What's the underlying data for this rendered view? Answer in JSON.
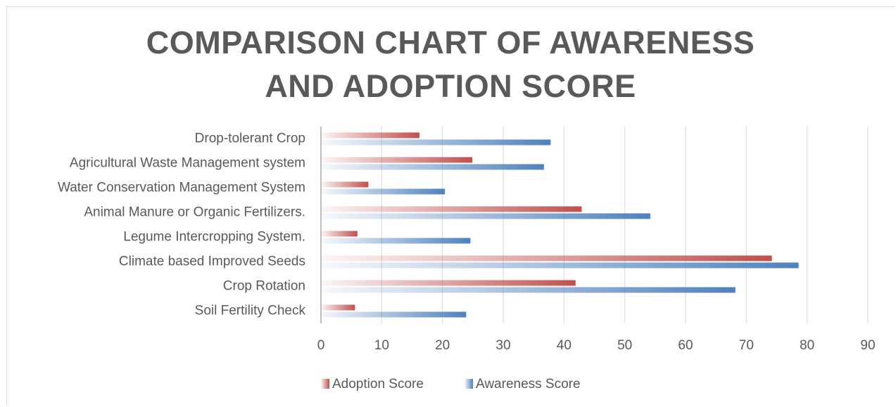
{
  "chart_data": {
    "type": "hbar",
    "title": "COMPARISON CHART OF AWARENESS AND ADOPTION SCORE",
    "categories": [
      "Soil Fertility Check",
      "Crop Rotation",
      "Climate based Improved Seeds",
      "Legume Intercropping System.",
      "Animal Manure or Organic Fertilizers.",
      "Water Conservation Management System",
      "Agricultural Waste Management system",
      "Drop-tolerant Crop"
    ],
    "series": [
      {
        "name": "Adoption Score",
        "color": "#c0504d",
        "values": [
          5.6,
          41.9,
          74.2,
          6.0,
          42.9,
          7.8,
          24.9,
          16.2
        ]
      },
      {
        "name": "Awareness Score",
        "color": "#4f81bd",
        "values": [
          23.9,
          68.2,
          78.6,
          24.6,
          54.2,
          20.4,
          36.7,
          37.8
        ]
      }
    ],
    "xlim": [
      0,
      90
    ],
    "xticks": [
      0,
      10,
      20,
      30,
      40,
      50,
      60,
      70,
      80,
      90
    ],
    "grid": true,
    "legend": "bottom"
  }
}
